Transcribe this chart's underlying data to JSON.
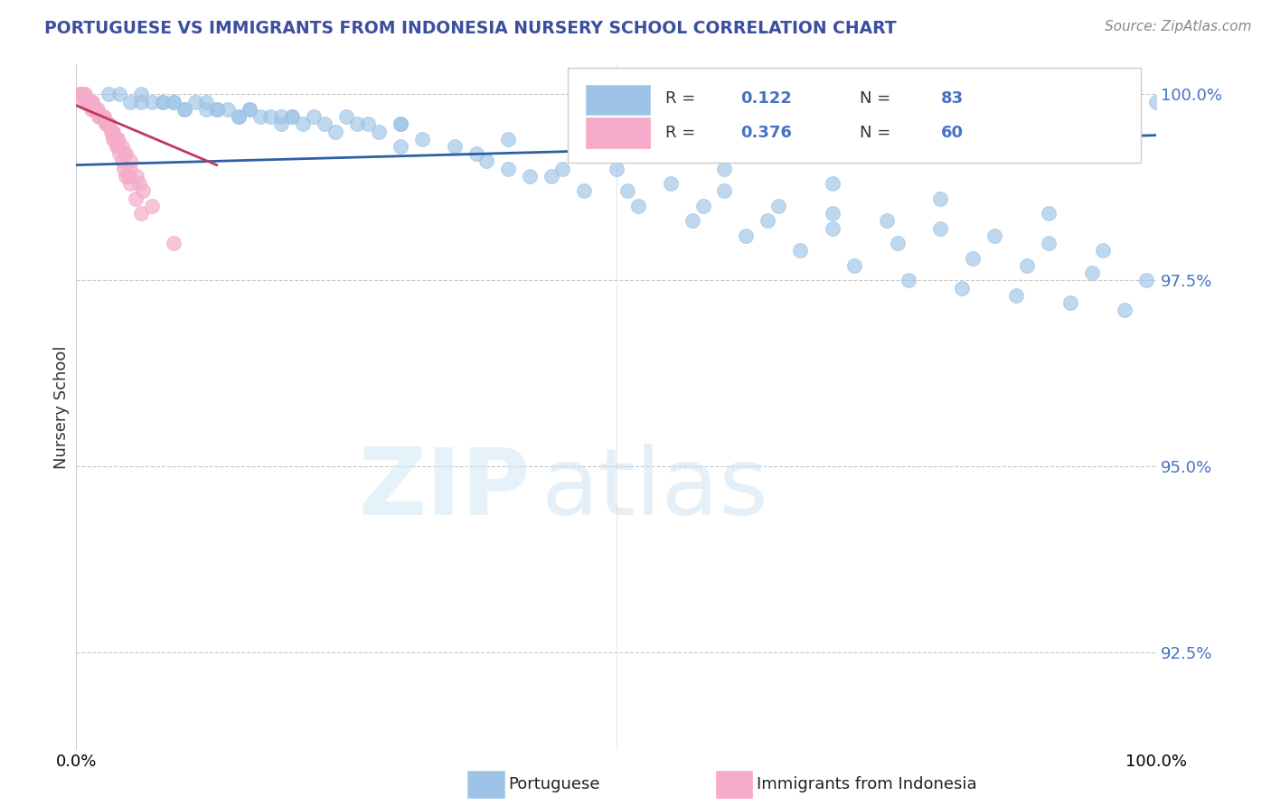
{
  "title": "PORTUGUESE VS IMMIGRANTS FROM INDONESIA NURSERY SCHOOL CORRELATION CHART",
  "source": "Source: ZipAtlas.com",
  "ylabel": "Nursery School",
  "color_blue": "#9DC3E6",
  "color_pink": "#F4ACCA",
  "color_line_blue": "#2E5FA3",
  "color_line_pink": "#C0395A",
  "color_title": "#3B4FA0",
  "color_axis_labels": "#4472C4",
  "xlim": [
    0.0,
    1.0
  ],
  "ylim": [
    0.912,
    1.004
  ],
  "yticks": [
    0.925,
    0.95,
    0.975,
    1.0
  ],
  "ytick_labels": [
    "92.5%",
    "95.0%",
    "97.5%",
    "100.0%"
  ],
  "blue_line_x0": 0.0,
  "blue_line_y0": 0.9905,
  "blue_line_x1": 1.0,
  "blue_line_y1": 0.9945,
  "pink_line_x0": 0.0,
  "pink_line_y0": 0.9985,
  "pink_line_x1": 0.13,
  "pink_line_y1": 0.9905,
  "blue_x": [
    0.04,
    0.07,
    0.09,
    0.11,
    0.13,
    0.14,
    0.16,
    0.18,
    0.2,
    0.22,
    0.25,
    0.27,
    0.3,
    0.35,
    0.4,
    0.45,
    0.5,
    0.55,
    0.6,
    0.65,
    0.7,
    0.75,
    0.8,
    0.85,
    0.9,
    0.95,
    1.0,
    0.06,
    0.08,
    0.1,
    0.12,
    0.15,
    0.17,
    0.19,
    0.21,
    0.23,
    0.26,
    0.28,
    0.32,
    0.37,
    0.42,
    0.47,
    0.52,
    0.57,
    0.62,
    0.67,
    0.72,
    0.77,
    0.82,
    0.87,
    0.92,
    0.97,
    0.05,
    0.08,
    0.1,
    0.13,
    0.15,
    0.19,
    0.24,
    0.3,
    0.38,
    0.44,
    0.51,
    0.58,
    0.64,
    0.7,
    0.76,
    0.83,
    0.88,
    0.94,
    0.99,
    0.03,
    0.06,
    0.09,
    0.12,
    0.16,
    0.2,
    0.3,
    0.4,
    0.5,
    0.6,
    0.7,
    0.8,
    0.9
  ],
  "blue_y": [
    1.0,
    0.999,
    0.999,
    0.999,
    0.998,
    0.998,
    0.998,
    0.997,
    0.997,
    0.997,
    0.997,
    0.996,
    0.996,
    0.993,
    0.99,
    0.99,
    0.99,
    0.988,
    0.987,
    0.985,
    0.984,
    0.983,
    0.982,
    0.981,
    0.98,
    0.979,
    0.999,
    0.999,
    0.999,
    0.998,
    0.998,
    0.997,
    0.997,
    0.997,
    0.996,
    0.996,
    0.996,
    0.995,
    0.994,
    0.992,
    0.989,
    0.987,
    0.985,
    0.983,
    0.981,
    0.979,
    0.977,
    0.975,
    0.974,
    0.973,
    0.972,
    0.971,
    0.999,
    0.999,
    0.998,
    0.998,
    0.997,
    0.996,
    0.995,
    0.993,
    0.991,
    0.989,
    0.987,
    0.985,
    0.983,
    0.982,
    0.98,
    0.978,
    0.977,
    0.976,
    0.975,
    1.0,
    1.0,
    0.999,
    0.999,
    0.998,
    0.997,
    0.996,
    0.994,
    0.992,
    0.99,
    0.988,
    0.986,
    0.984
  ],
  "pink_x": [
    0.005,
    0.008,
    0.01,
    0.011,
    0.012,
    0.013,
    0.015,
    0.016,
    0.018,
    0.02,
    0.021,
    0.022,
    0.024,
    0.025,
    0.027,
    0.028,
    0.03,
    0.032,
    0.034,
    0.035,
    0.037,
    0.038,
    0.04,
    0.042,
    0.044,
    0.046,
    0.048,
    0.05,
    0.055,
    0.06,
    0.003,
    0.006,
    0.009,
    0.012,
    0.015,
    0.018,
    0.022,
    0.026,
    0.03,
    0.034,
    0.038,
    0.042,
    0.046,
    0.05,
    0.056,
    0.062,
    0.004,
    0.007,
    0.01,
    0.014,
    0.018,
    0.023,
    0.028,
    0.033,
    0.038,
    0.044,
    0.05,
    0.058,
    0.07,
    0.09
  ],
  "pink_y": [
    1.0,
    1.0,
    0.999,
    0.999,
    0.999,
    0.999,
    0.999,
    0.998,
    0.998,
    0.998,
    0.997,
    0.997,
    0.997,
    0.997,
    0.996,
    0.996,
    0.996,
    0.995,
    0.994,
    0.994,
    0.993,
    0.993,
    0.992,
    0.991,
    0.99,
    0.989,
    0.989,
    0.988,
    0.986,
    0.984,
    1.0,
    1.0,
    0.999,
    0.999,
    0.999,
    0.998,
    0.997,
    0.997,
    0.996,
    0.995,
    0.994,
    0.993,
    0.992,
    0.991,
    0.989,
    0.987,
    1.0,
    0.999,
    0.999,
    0.998,
    0.998,
    0.997,
    0.996,
    0.995,
    0.994,
    0.992,
    0.99,
    0.988,
    0.985,
    0.98
  ]
}
